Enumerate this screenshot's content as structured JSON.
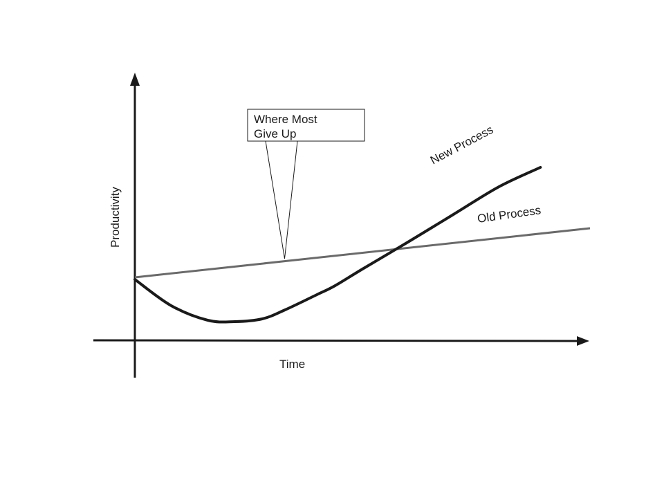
{
  "chart_data": {
    "type": "line",
    "title": "",
    "xlabel": "Time",
    "ylabel": "Productivity",
    "x_tick_labels": [],
    "y_tick_labels": [],
    "grid": false,
    "legend": "none",
    "series": [
      {
        "name": "Old Process",
        "color": "#6a6a6a",
        "points": [
          [
            0,
            91
          ],
          [
            1,
            162
          ]
        ]
      },
      {
        "name": "New Process",
        "color": "#1a1a1a",
        "points": [
          [
            0,
            88
          ],
          [
            0.08,
            50
          ],
          [
            0.16,
            29
          ],
          [
            0.22,
            27
          ],
          [
            0.28,
            31
          ],
          [
            0.33,
            44
          ],
          [
            0.4,
            66
          ],
          [
            0.44,
            79
          ],
          [
            0.5,
            103
          ],
          [
            0.6,
            142
          ],
          [
            0.7,
            182
          ],
          [
            0.8,
            222
          ],
          [
            0.891,
            250
          ]
        ]
      }
    ],
    "annotations": [
      {
        "text_lines": [
          "Where Most",
          "Give Up"
        ],
        "points_to": [
          0.329,
          118
        ]
      }
    ]
  }
}
